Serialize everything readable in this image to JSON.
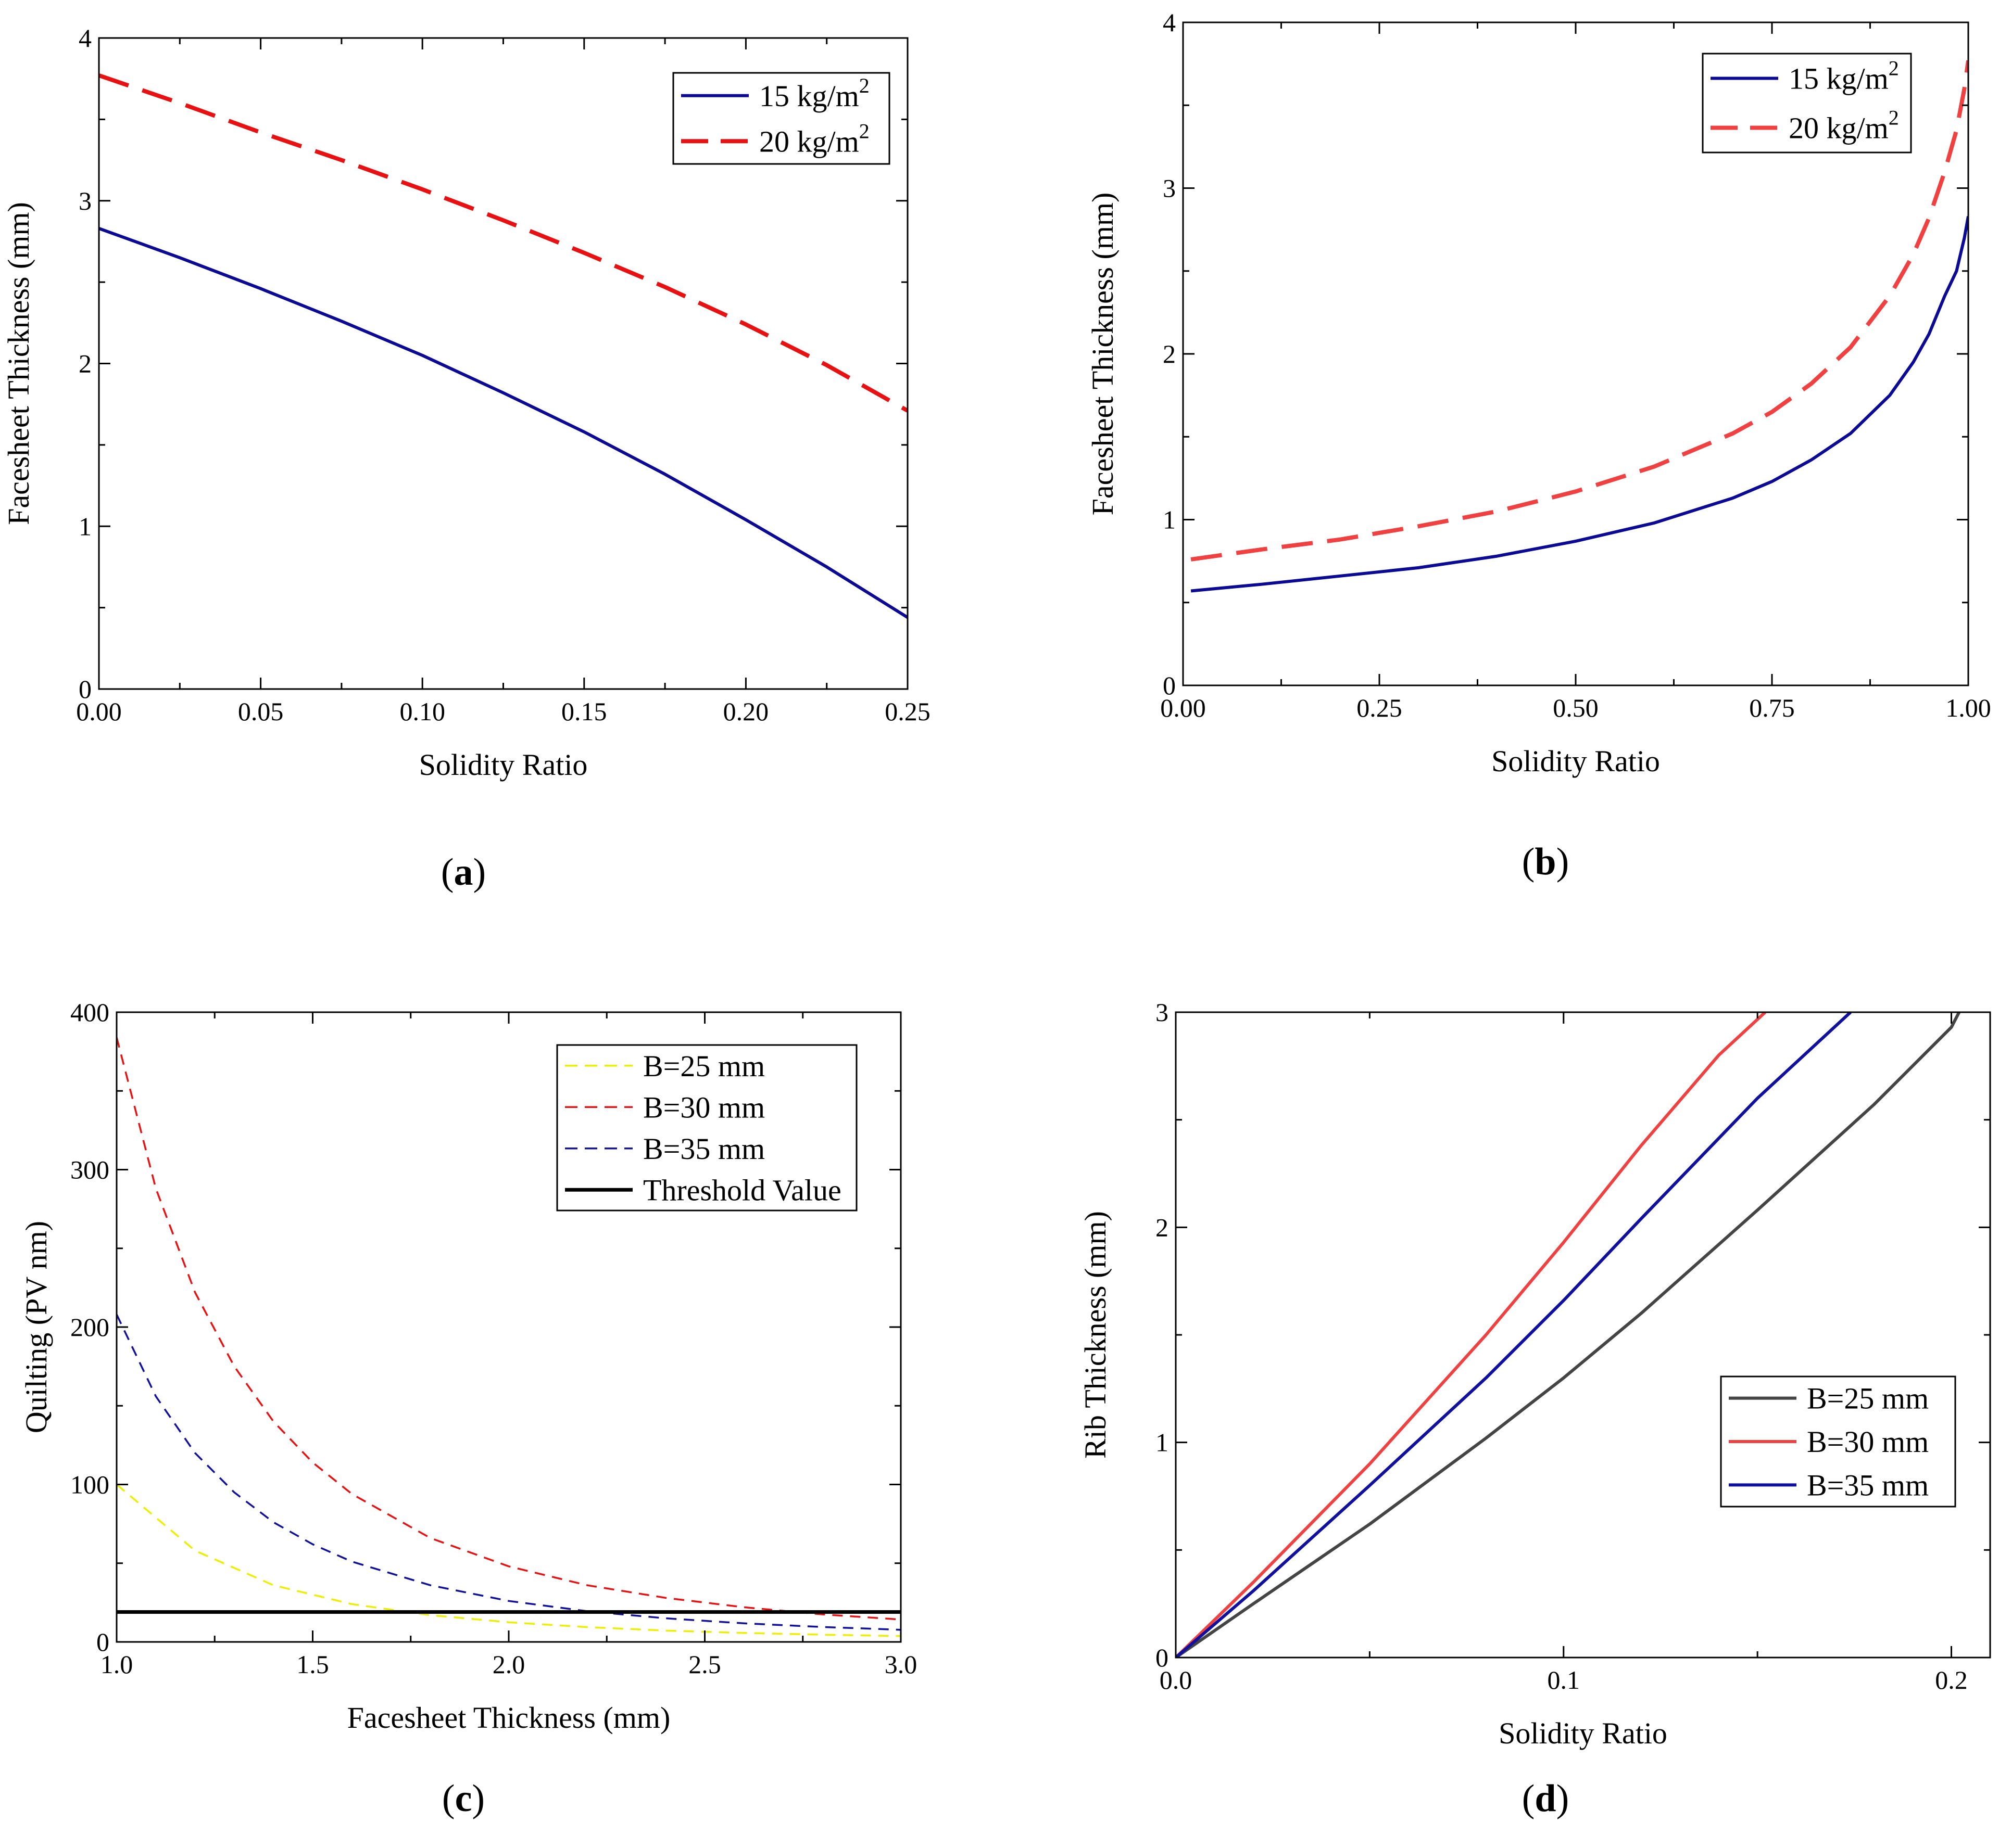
{
  "colors": {
    "navy": "#0a0a96",
    "red": "#e81010",
    "lightred": "#f04040",
    "yellow": "#eeee00",
    "blue": "#1010a0",
    "black": "#000000",
    "gray": "#444444"
  },
  "chart_data": [
    {
      "id": "a",
      "type": "line",
      "panel_label": "a",
      "xlabel": "Solidity Ratio",
      "ylabel": "Facesheet Thickness (mm)",
      "xlim": [
        0,
        0.25
      ],
      "ylim": [
        0,
        4
      ],
      "xticks": [
        0,
        0.05,
        0.1,
        0.15,
        0.2,
        0.25
      ],
      "xtick_labels": [
        "0.00",
        "0.05",
        "0.10",
        "0.15",
        "0.20",
        "0.25"
      ],
      "yticks": [
        0,
        1,
        2,
        3,
        4
      ],
      "ytick_labels": [
        "0",
        "1",
        "2",
        "3",
        "4"
      ],
      "legend_position": "top-right",
      "series": [
        {
          "name": "15 kg/m",
          "sup": "2",
          "color": "navy",
          "dash": "solid",
          "width": 6,
          "x": [
            0,
            0.025,
            0.05,
            0.075,
            0.1,
            0.125,
            0.15,
            0.175,
            0.2,
            0.225,
            0.25
          ],
          "y": [
            2.83,
            2.65,
            2.46,
            2.26,
            2.05,
            1.82,
            1.58,
            1.32,
            1.04,
            0.75,
            0.44
          ]
        },
        {
          "name": "20 kg/m",
          "sup": "2",
          "color": "red",
          "dash": "long",
          "width": 8,
          "x": [
            0,
            0.025,
            0.05,
            0.075,
            0.1,
            0.125,
            0.15,
            0.175,
            0.2,
            0.225,
            0.25
          ],
          "y": [
            3.77,
            3.6,
            3.42,
            3.25,
            3.07,
            2.88,
            2.68,
            2.47,
            2.24,
            1.99,
            1.71
          ]
        }
      ]
    },
    {
      "id": "b",
      "type": "line",
      "panel_label": "b",
      "xlabel": "Solidity Ratio",
      "ylabel": "Facesheet Thickness (mm)",
      "xlim": [
        0,
        1
      ],
      "ylim": [
        0,
        4
      ],
      "xticks": [
        0,
        0.25,
        0.5,
        0.75,
        1
      ],
      "xtick_labels": [
        "0.00",
        "0.25",
        "0.50",
        "0.75",
        "1.00"
      ],
      "yticks": [
        0,
        1,
        2,
        3,
        4
      ],
      "ytick_labels": [
        "0",
        "1",
        "2",
        "3",
        "4"
      ],
      "legend_position": "top-right",
      "series": [
        {
          "name": "15 kg/m",
          "sup": "2",
          "color": "navy",
          "dash": "solid",
          "width": 6,
          "x": [
            0.01,
            0.1,
            0.2,
            0.3,
            0.4,
            0.5,
            0.6,
            0.7,
            0.75,
            0.8,
            0.85,
            0.9,
            0.93,
            0.95,
            0.97,
            0.985,
            0.995,
            1.0
          ],
          "y": [
            0.57,
            0.61,
            0.66,
            0.71,
            0.78,
            0.87,
            0.98,
            1.13,
            1.23,
            1.36,
            1.52,
            1.75,
            1.95,
            2.12,
            2.35,
            2.5,
            2.7,
            2.83
          ]
        },
        {
          "name": "20 kg/m",
          "sup": "2",
          "color": "lightred",
          "dash": "long",
          "width": 8,
          "x": [
            0.01,
            0.1,
            0.2,
            0.3,
            0.4,
            0.5,
            0.6,
            0.7,
            0.75,
            0.8,
            0.85,
            0.9,
            0.93,
            0.95,
            0.97,
            0.985,
            0.995,
            1.0
          ],
          "y": [
            0.76,
            0.82,
            0.88,
            0.96,
            1.05,
            1.17,
            1.32,
            1.52,
            1.65,
            1.82,
            2.04,
            2.35,
            2.6,
            2.82,
            3.1,
            3.35,
            3.6,
            3.77
          ]
        }
      ]
    },
    {
      "id": "c",
      "type": "line",
      "panel_label": "c",
      "xlabel": "Facesheet Thickness (mm)",
      "ylabel": "Quilting (PV nm)",
      "xlim": [
        1,
        3
      ],
      "ylim": [
        0,
        400
      ],
      "xticks": [
        1,
        1.5,
        2,
        2.5,
        3
      ],
      "xtick_labels": [
        "1.0",
        "1.5",
        "2.0",
        "2.5",
        "3.0"
      ],
      "yticks": [
        0,
        100,
        200,
        300,
        400
      ],
      "ytick_labels": [
        "0",
        "100",
        "200",
        "300",
        "400"
      ],
      "legend_position": "top-right",
      "series": [
        {
          "name": "B=25 mm",
          "color": "yellow",
          "dash": "short",
          "width": 3.5,
          "x": [
            1.0,
            1.2,
            1.4,
            1.6,
            1.8,
            2.0,
            2.2,
            2.4,
            2.6,
            2.8,
            3.0
          ],
          "y": [
            100,
            58,
            36,
            24,
            17,
            12.5,
            9.4,
            7.2,
            5.7,
            4.6,
            3.7
          ]
        },
        {
          "name": "B=30 mm",
          "color": "red",
          "dash": "short",
          "width": 3.5,
          "x": [
            1.0,
            1.1,
            1.2,
            1.3,
            1.4,
            1.5,
            1.6,
            1.8,
            2.0,
            2.2,
            2.4,
            2.6,
            2.8,
            3.0
          ],
          "y": [
            384,
            288,
            222,
            175,
            140,
            114,
            94,
            66,
            48,
            36,
            28,
            22,
            17.5,
            14.2
          ]
        },
        {
          "name": "B=35 mm",
          "color": "blue",
          "dash": "short",
          "width": 3.5,
          "x": [
            1.0,
            1.1,
            1.2,
            1.3,
            1.4,
            1.5,
            1.6,
            1.8,
            2.0,
            2.2,
            2.4,
            2.6,
            2.8,
            3.0
          ],
          "y": [
            208,
            156,
            120,
            95,
            76,
            62,
            51,
            36,
            26,
            19.5,
            15,
            11.8,
            9.5,
            7.7
          ]
        },
        {
          "name": "Threshold Value",
          "color": "black",
          "dash": "solid",
          "width": 7,
          "x": [
            1.0,
            3.0
          ],
          "y": [
            19,
            19
          ]
        }
      ]
    },
    {
      "id": "d",
      "type": "line",
      "panel_label": "d",
      "xlabel": "Solidity Ratio",
      "ylabel": "Rib Thickness (mm)",
      "xlim": [
        0,
        0.21
      ],
      "ylim": [
        0,
        3
      ],
      "xticks": [
        0,
        0.1,
        0.2
      ],
      "xtick_labels": [
        "0.0",
        "0.1",
        "0.2"
      ],
      "yticks": [
        0,
        1,
        2,
        3
      ],
      "ytick_labels": [
        "0",
        "1",
        "2",
        "3"
      ],
      "legend_position": "center-right",
      "series": [
        {
          "name": "B=25 mm",
          "color": "gray",
          "dash": "solid",
          "width": 6,
          "x": [
            0,
            0.02,
            0.05,
            0.08,
            0.1,
            0.12,
            0.15,
            0.18,
            0.2,
            0.202
          ],
          "y": [
            0,
            0.25,
            0.62,
            1.02,
            1.3,
            1.6,
            2.08,
            2.57,
            2.93,
            3.0
          ]
        },
        {
          "name": "B=30 mm",
          "color": "lightred",
          "dash": "solid",
          "width": 6,
          "x": [
            0,
            0.02,
            0.05,
            0.08,
            0.1,
            0.12,
            0.14,
            0.152
          ],
          "y": [
            0,
            0.35,
            0.9,
            1.5,
            1.93,
            2.38,
            2.8,
            3.0
          ]
        },
        {
          "name": "B=35 mm",
          "color": "blue",
          "dash": "solid",
          "width": 6,
          "x": [
            0,
            0.02,
            0.05,
            0.08,
            0.1,
            0.12,
            0.15,
            0.174
          ],
          "y": [
            0,
            0.31,
            0.8,
            1.3,
            1.66,
            2.04,
            2.6,
            3.0
          ]
        }
      ]
    }
  ]
}
